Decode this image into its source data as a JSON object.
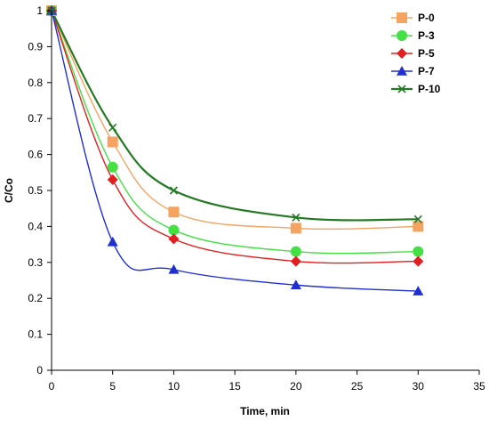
{
  "chart_data": {
    "type": "scatter",
    "title": "",
    "xlabel": "Time, min",
    "ylabel": "C/Co",
    "xlim": [
      0,
      35
    ],
    "ylim": [
      0,
      1
    ],
    "xticks": [
      0,
      5,
      10,
      15,
      20,
      25,
      30,
      35
    ],
    "yticks": [
      0,
      0.1,
      0.2,
      0.3,
      0.4,
      0.5,
      0.6,
      0.7,
      0.8,
      0.9,
      1
    ],
    "grid": false,
    "legend_position": "top-right",
    "smooth_lines": true,
    "series": [
      {
        "name": "P-0",
        "color": "#f4a460",
        "marker": "square",
        "x": [
          0,
          5,
          10,
          20,
          30
        ],
        "y": [
          1.0,
          0.635,
          0.44,
          0.395,
          0.4
        ]
      },
      {
        "name": "P-3",
        "color": "#44e044",
        "marker": "circle",
        "x": [
          0,
          5,
          10,
          20,
          30
        ],
        "y": [
          1.0,
          0.565,
          0.39,
          0.33,
          0.33
        ]
      },
      {
        "name": "P-5",
        "color": "#e02020",
        "marker": "diamond",
        "x": [
          0,
          5,
          10,
          20,
          30
        ],
        "y": [
          1.0,
          0.53,
          0.365,
          0.303,
          0.303
        ]
      },
      {
        "name": "P-7",
        "color": "#1f2fd0",
        "marker": "triangle",
        "x": [
          0,
          5,
          10,
          20,
          30
        ],
        "y": [
          1.0,
          0.357,
          0.28,
          0.237,
          0.22
        ]
      },
      {
        "name": "P-10",
        "color": "#237a23",
        "marker": "x",
        "x": [
          0,
          5,
          10,
          20,
          30
        ],
        "y": [
          1.0,
          0.675,
          0.5,
          0.425,
          0.42
        ]
      }
    ]
  }
}
